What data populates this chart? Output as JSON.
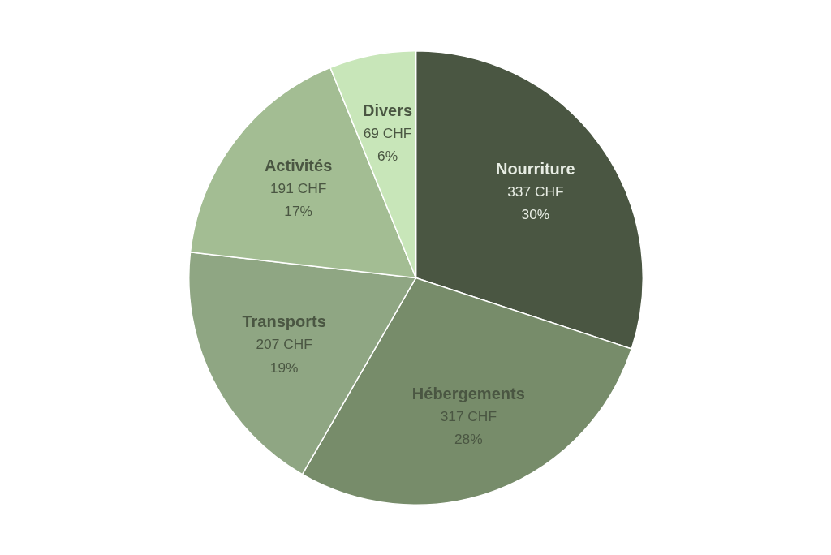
{
  "chart_data": {
    "type": "pie",
    "categories": [
      "Nourriture",
      "Hébergements",
      "Transports",
      "Activités",
      "Divers"
    ],
    "values": [
      337,
      317,
      207,
      191,
      69
    ],
    "colors": [
      "#4a5642",
      "#778c6a",
      "#8fa683",
      "#a3bd93",
      "#c8e6b9"
    ],
    "value_labels": [
      "337 CHF\n30%",
      "317 CHF\n28%",
      "207 CHF\n19%",
      "191 CHF\n17%",
      "69 CHF\n6%"
    ],
    "legend": false
  }
}
